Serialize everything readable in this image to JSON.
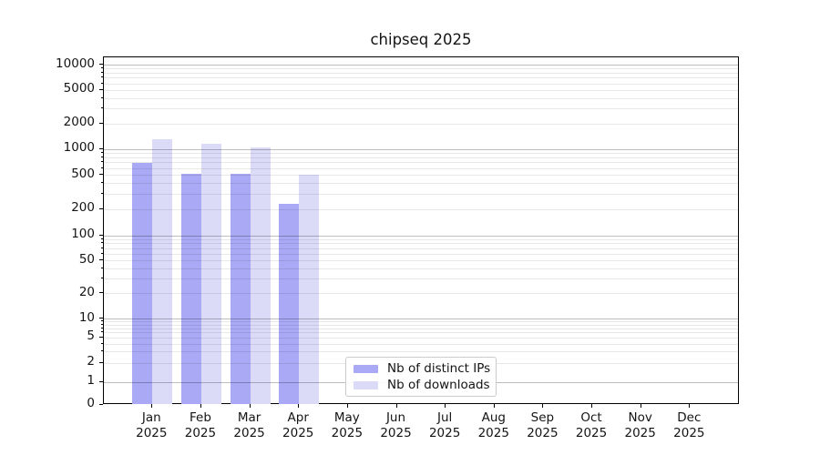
{
  "title": "chipseq 2025",
  "chart_data": {
    "type": "bar",
    "title": "chipseq 2025",
    "yscale": "symlog",
    "grid": true,
    "categories": [
      "Jan",
      "Feb",
      "Mar",
      "Apr",
      "May",
      "Jun",
      "Jul",
      "Aug",
      "Sep",
      "Oct",
      "Nov",
      "Dec"
    ],
    "category_year": "2025",
    "series": [
      {
        "name": "Nb of distinct IPs",
        "color": "#a9a9f5",
        "values": [
          680,
          510,
          510,
          230,
          0,
          0,
          0,
          0,
          0,
          0,
          0,
          0
        ]
      },
      {
        "name": "Nb of downloads",
        "color": "#dbdbf8",
        "values": [
          1300,
          1160,
          1040,
          500,
          0,
          0,
          0,
          0,
          0,
          0,
          0,
          0
        ]
      }
    ],
    "y_ticks": [
      0,
      1,
      2,
      5,
      10,
      20,
      50,
      100,
      200,
      500,
      1000,
      2000,
      5000,
      10000
    ],
    "ylim": [
      0,
      12600
    ],
    "legend": {
      "entries": [
        "Nb of distinct IPs",
        "Nb of downloads"
      ],
      "position": "lower center"
    }
  },
  "style": {
    "bar_color_ips": "#a9a9f5",
    "bar_color_downloads": "#dbdbf8",
    "grid_major_rgba": "rgba(0,0,0,0.26)",
    "grid_minor_rgba": "rgba(0,0,0,0.09)",
    "spine_color": "#000000",
    "background": "#ffffff"
  }
}
